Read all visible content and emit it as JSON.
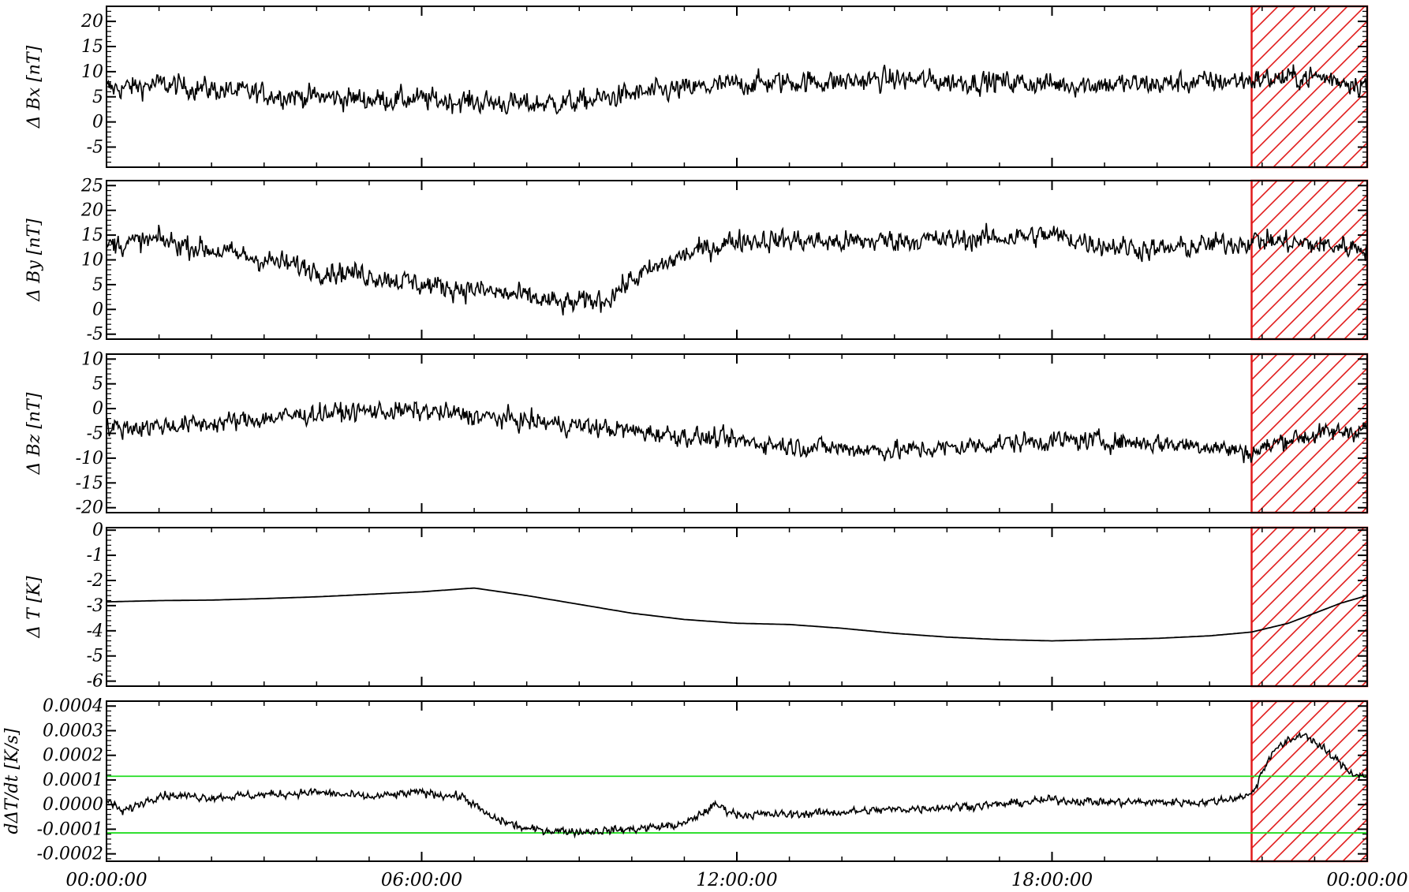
{
  "chart_data": [
    {
      "type": "line",
      "ylabel": "Δ Bx [nT]",
      "ylim": [
        -9,
        23
      ],
      "yticks": [
        "20",
        "15",
        "10",
        "5",
        "0",
        "-5"
      ],
      "ytick_values": [
        20,
        15,
        10,
        5,
        0,
        -5
      ],
      "series": [
        {
          "color": "#000000",
          "trend": {
            "x": [
              0,
              1,
              2,
              3,
              4,
              5,
              6,
              7,
              8,
              9,
              10,
              11,
              12,
              13,
              14,
              15,
              16,
              17,
              18,
              19,
              20,
              21,
              22,
              23,
              24
            ],
            "y": [
              6.5,
              7.5,
              6.5,
              5.5,
              5,
              4.5,
              4.5,
              4,
              3.5,
              4,
              5.5,
              6.5,
              7.5,
              8,
              8,
              8.5,
              8,
              8,
              7.5,
              7.5,
              7.5,
              8,
              8.5,
              9,
              7.5
            ]
          },
          "noise": 1.6
        }
      ],
      "hatched_region": {
        "x": [
          21.8,
          24
        ],
        "color": "#e11b1b"
      }
    },
    {
      "type": "line",
      "ylabel": "Δ By [nT]",
      "ylim": [
        -6,
        26
      ],
      "yticks": [
        "25",
        "20",
        "15",
        "10",
        "5",
        "0",
        "-5"
      ],
      "ytick_values": [
        25,
        20,
        15,
        10,
        5,
        0,
        -5
      ],
      "series": [
        {
          "color": "#000000",
          "trend": {
            "x": [
              0,
              1,
              2,
              3,
              4,
              5,
              6,
              7,
              8,
              8.7,
              9.5,
              10,
              11,
              12,
              13,
              14,
              15,
              16,
              17,
              18,
              19,
              20,
              21,
              22,
              23,
              24
            ],
            "y": [
              13,
              14,
              12,
              10,
              8,
              7,
              5,
              4,
              2.5,
              1,
              2,
              6,
              11,
              14,
              14,
              13.5,
              14,
              14,
              14.5,
              15,
              13,
              12,
              13,
              14,
              13,
              12.5
            ]
          },
          "noise": 1.6
        }
      ],
      "hatched_region": {
        "x": [
          21.8,
          24
        ],
        "color": "#e11b1b"
      }
    },
    {
      "type": "line",
      "ylabel": "Δ Bz [nT]",
      "ylim": [
        -21,
        11
      ],
      "yticks": [
        "10",
        "5",
        "0",
        "-5",
        "-10",
        "-15",
        "-20"
      ],
      "ytick_values": [
        10,
        5,
        0,
        -5,
        -10,
        -15,
        -20
      ],
      "series": [
        {
          "color": "#000000",
          "trend": {
            "x": [
              0,
              1,
              2,
              3,
              4,
              5,
              6,
              7,
              8,
              9,
              10,
              11,
              12,
              13,
              14,
              15,
              16,
              17,
              18,
              19,
              20,
              21,
              21.8,
              22.5,
              24
            ],
            "y": [
              -4,
              -3.5,
              -3,
              -2,
              -1,
              -0.5,
              -0.5,
              -1.5,
              -2.5,
              -3.5,
              -4.5,
              -5.5,
              -6.5,
              -7.5,
              -8,
              -8.5,
              -8,
              -7,
              -6.5,
              -6.5,
              -7,
              -7.5,
              -9,
              -6,
              -4
            ]
          },
          "noise": 1.4
        }
      ],
      "hatched_region": {
        "x": [
          21.8,
          24
        ],
        "color": "#e11b1b"
      }
    },
    {
      "type": "line",
      "ylabel": "Δ T [K]",
      "ylim": [
        -6.2,
        0.1
      ],
      "yticks": [
        "0",
        "-1",
        "-2",
        "-3",
        "-4",
        "-5",
        "-6"
      ],
      "ytick_values": [
        0,
        -1,
        -2,
        -3,
        -4,
        -5,
        -6
      ],
      "series": [
        {
          "color": "#000000",
          "trend": {
            "x": [
              0,
              1,
              2,
              3,
              4,
              5,
              6,
              7,
              8,
              9,
              10,
              11,
              12,
              13,
              14,
              15,
              16,
              17,
              18,
              19,
              20,
              21,
              21.8,
              22.5,
              23.5,
              24
            ],
            "y": [
              -2.85,
              -2.8,
              -2.78,
              -2.72,
              -2.65,
              -2.55,
              -2.45,
              -2.3,
              -2.6,
              -2.95,
              -3.3,
              -3.55,
              -3.7,
              -3.75,
              -3.9,
              -4.1,
              -4.25,
              -4.35,
              -4.4,
              -4.35,
              -4.3,
              -4.2,
              -4.05,
              -3.7,
              -2.9,
              -2.6
            ]
          },
          "noise": 0.0
        }
      ],
      "hatched_region": {
        "x": [
          21.8,
          24
        ],
        "color": "#e11b1b"
      }
    },
    {
      "type": "line",
      "ylabel": "dΔT/dt [K/s]",
      "ylim": [
        -0.00023,
        0.00042
      ],
      "yticks": [
        "0.0004",
        "0.0003",
        "0.0002",
        "0.0001",
        "0.0000",
        "-0.0001",
        "-0.0002"
      ],
      "ytick_values": [
        0.0004,
        0.0003,
        0.0002,
        0.0001,
        0.0,
        -0.0001,
        -0.0002
      ],
      "series": [
        {
          "color": "#000000",
          "trend": {
            "x": [
              0,
              0.3,
              1,
              2,
              3,
              4,
              5,
              6,
              6.8,
              7.3,
              8,
              9,
              10,
              11,
              11.6,
              12,
              13,
              14,
              15,
              16,
              17,
              18,
              19,
              20,
              21,
              21.8,
              22.2,
              22.8,
              23.3,
              23.7,
              24
            ],
            "y": [
              2e-05,
              -3e-05,
              4e-05,
              3e-05,
              4e-05,
              5e-05,
              3e-05,
              5e-05,
              3e-05,
              -5e-05,
              -0.0001,
              -0.00011,
              -0.0001,
              -8e-05,
              0.0,
              -4e-05,
              -4e-05,
              -3e-05,
              -2e-05,
              -1e-05,
              0.0,
              2e-05,
              1e-05,
              1e-05,
              1e-05,
              4e-05,
              0.00022,
              0.00029,
              0.0002,
              0.00013,
              0.00011
            ]
          },
          "noise": 1.2e-05
        }
      ],
      "thresholds": [
        0.000115,
        -0.000115
      ],
      "threshold_color": "#22dd22",
      "hatched_region": {
        "x": [
          21.8,
          24
        ],
        "color": "#e11b1b"
      }
    }
  ],
  "x_axis": {
    "unit": "hours",
    "range": [
      0,
      24
    ],
    "tick_values": [
      0,
      6,
      12,
      18,
      24
    ],
    "tick_labels": [
      "00:00:00",
      "06:00:00",
      "12:00:00",
      "18:00:00",
      "00:00:00"
    ]
  }
}
